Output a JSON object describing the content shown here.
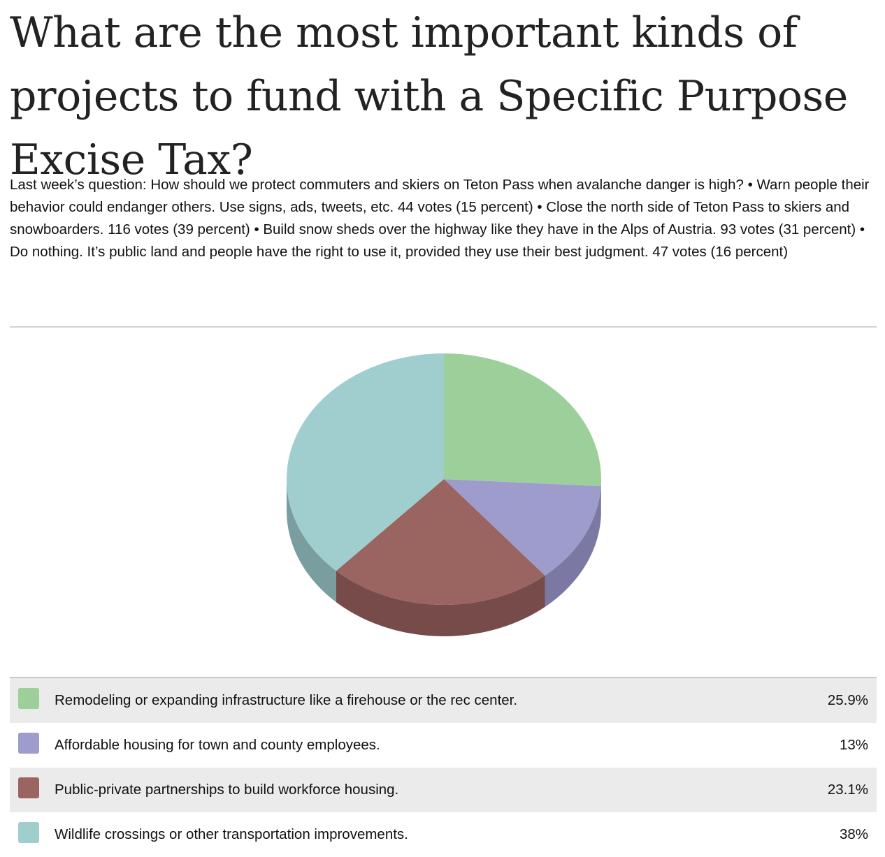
{
  "question": {
    "title": "What are the most important kinds of projects to fund with a Specific Purpose Excise Tax?",
    "description": "Last week’s question: How should we protect commuters and skiers on Teton Pass when avalanche danger is high? • Warn people their behavior could endanger others. Use signs, ads, tweets, etc. 44 votes (15 percent) • Close the north side of Teton Pass to skiers and snowboarders. 116 votes (39 percent) • Build snow sheds over the highway like they have in the Alps of Austria. 93 votes (31 percent) • Do nothing. It’s public land and people have the right to use it, provided they use their best judgment. 47 votes (16 percent)"
  },
  "chart_data": {
    "type": "pie",
    "style": "3d",
    "title": "",
    "start_angle": "12 o'clock, clockwise",
    "categories": [
      "Remodeling or expanding infrastructure like a firehouse or the rec center.",
      "Affordable housing for town and county employees.",
      "Public-private partnerships to build workforce housing.",
      "Wildlife crossings or other transportation improvements."
    ],
    "values": [
      25.9,
      13,
      23.1,
      38
    ],
    "value_labels": [
      "25.9%",
      "13%",
      "23.1%",
      "38%"
    ],
    "colors": [
      "#9dcf9b",
      "#9e9ccc",
      "#9a6461",
      "#a0cecf"
    ],
    "side_colors": [
      "#7da67c",
      "#7b79a3",
      "#764b49",
      "#7a9e9f"
    ],
    "legend_placement": "bottom"
  }
}
